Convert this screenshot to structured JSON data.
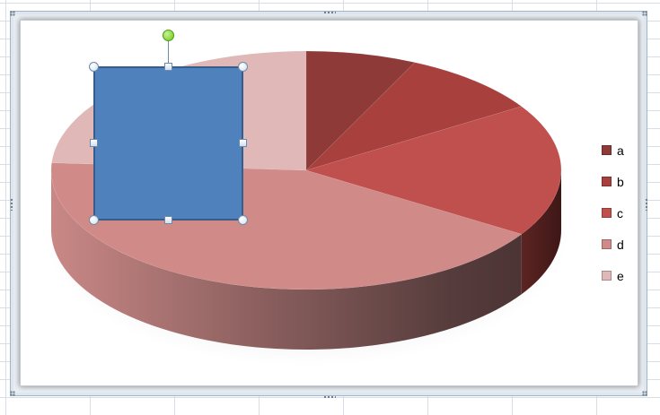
{
  "legend": {
    "items": [
      {
        "label": "a",
        "color": "#8e3a38"
      },
      {
        "label": "b",
        "color": "#a8413e"
      },
      {
        "label": "c",
        "color": "#c0504d"
      },
      {
        "label": "d",
        "color": "#d08b89"
      },
      {
        "label": "e",
        "color": "#dfb8b7"
      }
    ]
  },
  "chart_data": {
    "type": "pie",
    "categories": [
      "a",
      "b",
      "c",
      "d",
      "e"
    ],
    "values": [
      7,
      9,
      18,
      42,
      24
    ],
    "colors": [
      "#8e3a38",
      "#a8413e",
      "#c0504d",
      "#d08b89",
      "#dfb8b7"
    ],
    "style": "3d",
    "legend_position": "right"
  },
  "shape": {
    "type": "rectangle",
    "fill": "#4f81bd",
    "selected": true
  }
}
